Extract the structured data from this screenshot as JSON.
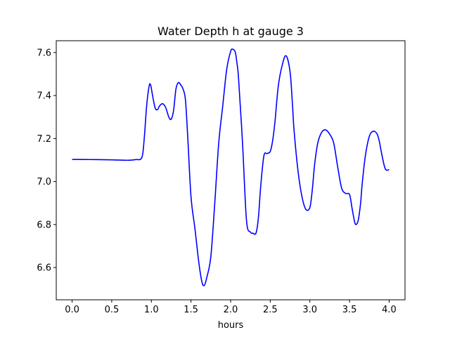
{
  "chart_data": {
    "type": "line",
    "title": "Water Depth h at gauge 3",
    "xlabel": "hours",
    "ylabel": "",
    "xlim": [
      -0.2,
      4.2
    ],
    "ylim": [
      6.45,
      7.655
    ],
    "xticks": [
      0.0,
      0.5,
      1.0,
      1.5,
      2.0,
      2.5,
      3.0,
      3.5,
      4.0
    ],
    "xtick_labels": [
      "0.0",
      "0.5",
      "1.0",
      "1.5",
      "2.0",
      "2.5",
      "3.0",
      "3.5",
      "4.0"
    ],
    "yticks": [
      6.6,
      6.8,
      7.0,
      7.2,
      7.4,
      7.6
    ],
    "ytick_labels": [
      "6.6",
      "6.8",
      "7.0",
      "7.2",
      "7.4",
      "7.6"
    ],
    "grid": false,
    "series": [
      {
        "color": "#0000ff",
        "x": [
          0.0,
          0.3,
          0.5,
          0.7,
          0.8,
          0.88,
          0.91,
          0.94,
          0.97,
          0.99,
          1.02,
          1.05,
          1.08,
          1.1,
          1.14,
          1.18,
          1.22,
          1.25,
          1.28,
          1.31,
          1.34,
          1.37,
          1.4,
          1.43,
          1.46,
          1.5,
          1.55,
          1.6,
          1.64,
          1.67,
          1.7,
          1.75,
          1.8,
          1.85,
          1.9,
          1.95,
          2.0,
          2.03,
          2.06,
          2.08,
          2.1,
          2.15,
          2.2,
          2.25,
          2.28,
          2.32,
          2.35,
          2.38,
          2.42,
          2.46,
          2.5,
          2.53,
          2.56,
          2.6,
          2.65,
          2.7,
          2.75,
          2.78,
          2.8,
          2.85,
          2.9,
          2.95,
          3.0,
          3.03,
          3.06,
          3.1,
          3.15,
          3.2,
          3.25,
          3.3,
          3.35,
          3.4,
          3.45,
          3.5,
          3.53,
          3.56,
          3.58,
          3.61,
          3.64,
          3.66,
          3.7,
          3.75,
          3.8,
          3.85,
          3.88,
          3.9,
          3.95,
          4.0
        ],
        "y": [
          7.103,
          7.102,
          7.101,
          7.099,
          7.102,
          7.112,
          7.2,
          7.35,
          7.44,
          7.45,
          7.39,
          7.34,
          7.335,
          7.35,
          7.362,
          7.345,
          7.3,
          7.29,
          7.33,
          7.43,
          7.46,
          7.45,
          7.43,
          7.38,
          7.2,
          6.93,
          6.78,
          6.62,
          6.53,
          6.518,
          6.555,
          6.65,
          6.9,
          7.18,
          7.35,
          7.52,
          7.605,
          7.615,
          7.6,
          7.55,
          7.48,
          7.18,
          6.82,
          6.765,
          6.76,
          6.76,
          6.83,
          6.98,
          7.12,
          7.13,
          7.14,
          7.19,
          7.28,
          7.44,
          7.54,
          7.585,
          7.51,
          7.36,
          7.24,
          7.05,
          6.93,
          6.87,
          6.88,
          6.96,
          7.08,
          7.18,
          7.23,
          7.24,
          7.22,
          7.18,
          7.07,
          6.97,
          6.945,
          6.94,
          6.88,
          6.82,
          6.8,
          6.82,
          6.9,
          6.99,
          7.12,
          7.21,
          7.234,
          7.22,
          7.18,
          7.14,
          7.06,
          7.055
        ]
      }
    ]
  }
}
